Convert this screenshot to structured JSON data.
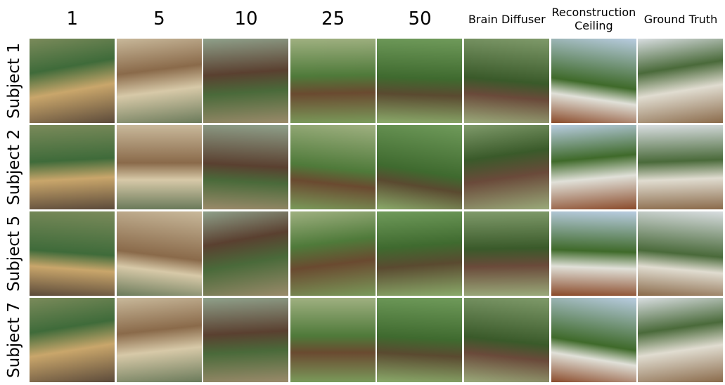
{
  "columns": [
    "1",
    "5",
    "10",
    "25",
    "50",
    "Brain Diffuser",
    "Reconstruction Ceiling",
    "Ground Truth"
  ],
  "rows": [
    "Subject 1",
    "Subject 2",
    "Subject 5",
    "Subject 7"
  ]
}
